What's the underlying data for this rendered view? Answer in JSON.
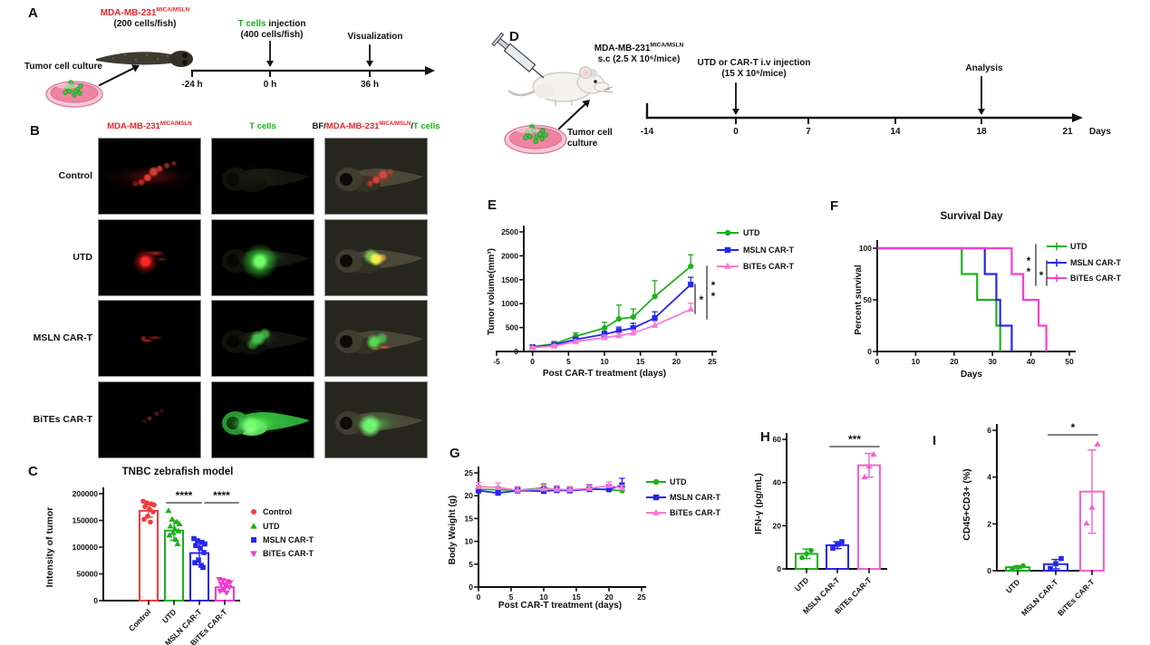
{
  "accent_colors": {
    "red_text": "#e8262b",
    "green_text": "#16b316",
    "utd_green": "#1db01d",
    "msln_blue": "#2626f2",
    "bites_magenta": "#f338cf",
    "bites_pink": "#f87ad5",
    "control_red": "#ee3c3e"
  },
  "letters": {
    "a": "A",
    "b": "B",
    "c": "C",
    "d": "D",
    "e": "E",
    "f": "F",
    "g": "G",
    "h": "H",
    "i": "I"
  },
  "panelA": {
    "cell_line": "MDA-MB-231",
    "cell_line_sup": "MICA/MSLN",
    "cell_dose": "(200 cells/fish)",
    "tcells_word": "T cells",
    "injection_word": " injection",
    "tcell_dose": "(400 cells/fish)",
    "visualization": "Visualization",
    "culture": "Tumor cell culture",
    "timeline": [
      "-24 h",
      "0 h",
      "36 h"
    ]
  },
  "panelB": {
    "col_tumor": "MDA-MB-231",
    "col_tumor_sup": "MICA/MSLN",
    "col_tcells": "T cells",
    "col_merge_prefix": "BF/",
    "col_merge_tumor": "MDA-MB-231",
    "col_merge_sup": "MICA/MSLN",
    "col_merge_slash": "/",
    "col_merge_tcells": "T cells",
    "rows": [
      "Control",
      "UTD",
      "MSLN CAR-T",
      "BiTEs CAR-T"
    ]
  },
  "panelD": {
    "cell_line": "MDA-MB-231",
    "cell_line_sup": "MICA/MSLN",
    "sc_dose": "s.c (2.5 X 10⁶/mice)",
    "injection": "UTD or CAR-T i.v injection",
    "injection_dose": "(15 X 10⁶/mice)",
    "analysis": "Analysis",
    "culture": "Tumor cell culture",
    "timeline": [
      "-14",
      "0",
      "7",
      "14",
      "18",
      "21"
    ],
    "timeline_unit": "Days"
  },
  "chart_data": [
    {
      "id": "C",
      "type": "bar",
      "title": "TNBC zebrafish model",
      "ylabel": "Intensity of tumor",
      "categories": [
        "Control",
        "UTD",
        "MSLN CAR-T",
        "BiTEs CAR-T"
      ],
      "values": [
        168000,
        131000,
        89000,
        25000
      ],
      "errors": [
        12000,
        18000,
        22000,
        8000
      ],
      "colors": [
        "#ee3c3e",
        "#1db01d",
        "#2626f2",
        "#f338cf"
      ],
      "markers": [
        "circle",
        "tri",
        "square",
        "tridown"
      ],
      "points": [
        [
          186000,
          183000,
          181000,
          179000,
          176000,
          171000,
          166000,
          158000,
          152000,
          147000
        ],
        [
          168000,
          152000,
          147000,
          143000,
          139000,
          134000,
          130000,
          127000,
          122000,
          114000,
          106000
        ],
        [
          116000,
          112000,
          109000,
          106000,
          103000,
          98000,
          90000,
          76000,
          71000,
          66000,
          62000
        ],
        [
          40000,
          38000,
          36000,
          34000,
          31000,
          28000,
          25000,
          21000,
          18000,
          15000
        ]
      ],
      "ylim": [
        0,
        200000
      ],
      "yticks": [
        0,
        50000,
        100000,
        150000,
        200000
      ],
      "legend": [
        "Control",
        "UTD",
        "MSLN CAR-T",
        "BiTEs CAR-T"
      ],
      "sig": [
        {
          "compare": "UTD vs MSLN CAR-T",
          "label": "****"
        },
        {
          "compare": "MSLN CAR-T vs BiTEs CAR-T",
          "label": "****"
        }
      ]
    },
    {
      "id": "E",
      "type": "line",
      "ylabel": "Tumor volume(mm³)",
      "xlabel": "Post CAR-T treatment (days)",
      "x": [
        0,
        3,
        6,
        10,
        12,
        14,
        17,
        22
      ],
      "series": [
        {
          "name": "UTD",
          "color": "#1db01d",
          "marker": "circle",
          "values": [
            100,
            160,
            320,
            490,
            680,
            720,
            1150,
            1780
          ],
          "errors": [
            40,
            50,
            70,
            120,
            290,
            170,
            330,
            240
          ]
        },
        {
          "name": "MSLN CAR-T",
          "color": "#2626f2",
          "marker": "square",
          "values": [
            90,
            140,
            250,
            360,
            430,
            490,
            700,
            1400
          ],
          "errors": [
            25,
            35,
            45,
            60,
            80,
            100,
            130,
            150
          ]
        },
        {
          "name": "BiTEs CAR-T",
          "color": "#f87ad5",
          "marker": "tri",
          "values": [
            80,
            115,
            205,
            290,
            330,
            385,
            545,
            880
          ],
          "errors": [
            20,
            30,
            40,
            50,
            55,
            65,
            85,
            130
          ]
        }
      ],
      "xlim": [
        -5,
        25
      ],
      "ylim": [
        0,
        2500
      ],
      "xticks": [
        -5,
        0,
        5,
        10,
        15,
        20,
        25
      ],
      "yticks": [
        0,
        500,
        1000,
        1500,
        2000,
        2500
      ],
      "sig": [
        {
          "compare": "MSLN CAR-T vs BiTEs CAR-T",
          "label": "*"
        },
        {
          "compare": "UTD vs BiTEs CAR-T",
          "label": "**"
        }
      ]
    },
    {
      "id": "F",
      "type": "survival",
      "title": "Survival Day",
      "ylabel": "Percent survival",
      "xlabel": "Days",
      "series": [
        {
          "name": "UTD",
          "color": "#1db01d",
          "steps": [
            [
              0,
              100
            ],
            [
              22,
              100
            ],
            [
              22,
              75
            ],
            [
              26,
              75
            ],
            [
              26,
              50
            ],
            [
              31,
              50
            ],
            [
              31,
              25
            ],
            [
              32,
              25
            ],
            [
              32,
              0
            ]
          ]
        },
        {
          "name": "MSLN CAR-T",
          "color": "#2626f2",
          "steps": [
            [
              0,
              100
            ],
            [
              28,
              100
            ],
            [
              28,
              75
            ],
            [
              31,
              75
            ],
            [
              31,
              50
            ],
            [
              32,
              50
            ],
            [
              32,
              25
            ],
            [
              35,
              25
            ],
            [
              35,
              0
            ]
          ]
        },
        {
          "name": "BiTEs CAR-T",
          "color": "#f43fd3",
          "steps": [
            [
              0,
              100
            ],
            [
              35,
              100
            ],
            [
              35,
              75
            ],
            [
              38,
              75
            ],
            [
              38,
              50
            ],
            [
              42,
              50
            ],
            [
              42,
              25
            ],
            [
              44,
              25
            ],
            [
              44,
              0
            ]
          ]
        }
      ],
      "xlim": [
        0,
        50
      ],
      "ylim": [
        0,
        100
      ],
      "xticks": [
        0,
        10,
        20,
        30,
        40,
        50
      ],
      "yticks": [
        0,
        50,
        100
      ],
      "sig": [
        {
          "compare": "UTD vs BiTEs CAR-T",
          "label": "**"
        },
        {
          "compare": "MSLN CAR-T vs BiTEs CAR-T",
          "label": "*"
        }
      ]
    },
    {
      "id": "G",
      "type": "line",
      "ylabel": "Body Weight (g)",
      "xlabel": "Post CAR-T treatment (days)",
      "x": [
        0,
        3,
        6,
        10,
        12,
        14,
        17,
        20,
        22
      ],
      "series": [
        {
          "name": "UTD",
          "color": "#1db01d",
          "marker": "circle",
          "values": [
            21.4,
            21.3,
            21.2,
            21.7,
            21.3,
            21.2,
            21.5,
            21.3,
            21.1
          ],
          "errors": [
            0.8,
            0.7,
            0.6,
            0.9,
            0.7,
            0.6,
            0.8,
            0.7,
            0.7
          ]
        },
        {
          "name": "MSLN CAR-T",
          "color": "#2626f2",
          "marker": "square",
          "values": [
            21.1,
            20.6,
            21.1,
            21.0,
            21.2,
            21.1,
            21.4,
            21.4,
            22.3
          ],
          "errors": [
            0.6,
            0.7,
            0.8,
            0.9,
            0.8,
            0.9,
            1.0,
            1.0,
            1.5
          ]
        },
        {
          "name": "BiTEs CAR-T",
          "color": "#f87ad5",
          "marker": "tri",
          "values": [
            22.0,
            21.8,
            21.2,
            21.5,
            21.4,
            21.3,
            21.6,
            22.2,
            21.7
          ],
          "errors": [
            0.9,
            1.0,
            0.8,
            0.9,
            0.8,
            0.7,
            0.9,
            0.8,
            0.6
          ]
        }
      ],
      "xlim": [
        0,
        25
      ],
      "ylim": [
        0,
        25
      ],
      "xticks": [
        0,
        5,
        10,
        15,
        20,
        25
      ],
      "yticks": [
        0,
        5,
        10,
        15,
        20,
        25
      ]
    },
    {
      "id": "H",
      "type": "bar",
      "ylabel": "IFN-γ (pg/mL)",
      "categories": [
        "UTD",
        "MSLN CAR-T",
        "BiTEs CAR-T"
      ],
      "values": [
        7,
        11,
        48
      ],
      "errors": [
        2.2,
        1.6,
        5.5
      ],
      "colors": [
        "#1db01d",
        "#2626f2",
        "#f75fd0"
      ],
      "markers": [
        "circle",
        "square",
        "tri"
      ],
      "points": [
        [
          5.2,
          7.0,
          8.6
        ],
        [
          9.6,
          11.4,
          12.6
        ],
        [
          42.5,
          47.5,
          53.0
        ]
      ],
      "ylim": [
        0,
        60
      ],
      "yticks": [
        0,
        20,
        40,
        60
      ],
      "sig": [
        {
          "compare": "MSLN CAR-T vs BiTEs CAR-T",
          "label": "***"
        }
      ]
    },
    {
      "id": "I",
      "type": "bar",
      "ylabel": "CD45+CD3+ (%)",
      "categories": [
        "UTD",
        "MSLN CAR-T",
        "BiTEs CAR-T"
      ],
      "values": [
        0.15,
        0.28,
        3.38
      ],
      "errors": [
        0.06,
        0.2,
        1.78
      ],
      "colors": [
        "#1db01d",
        "#2626f2",
        "#f75fd0"
      ],
      "markers": [
        "circle",
        "square",
        "tri"
      ],
      "points": [
        [
          0.1,
          0.15,
          0.21
        ],
        [
          0.1,
          0.3,
          0.52
        ],
        [
          2.02,
          2.7,
          5.4
        ]
      ],
      "ylim": [
        0,
        6
      ],
      "yticks": [
        0,
        2,
        4,
        6
      ],
      "sig": [
        {
          "compare": "MSLN CAR-T vs BiTEs CAR-T",
          "label": "*"
        }
      ]
    }
  ]
}
